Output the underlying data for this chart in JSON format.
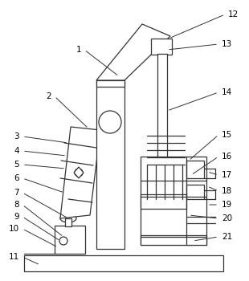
{
  "bg_color": "#ffffff",
  "line_color": "#333333",
  "label_color": "#000000",
  "fig_width": 3.1,
  "fig_height": 3.5,
  "dpi": 100
}
